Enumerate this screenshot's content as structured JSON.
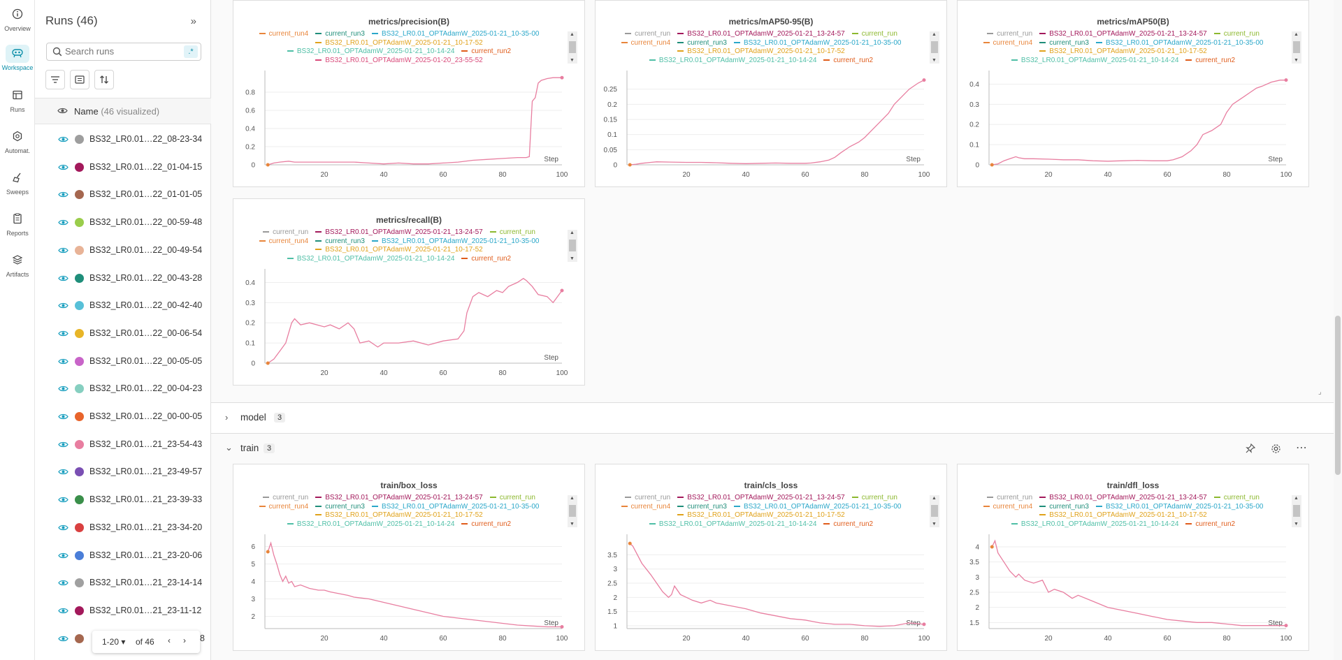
{
  "rail": {
    "items": [
      {
        "label": "Overview",
        "icon": "info-icon"
      },
      {
        "label": "Workspace",
        "icon": "workspace-icon"
      },
      {
        "label": "Runs",
        "icon": "table-icon"
      },
      {
        "label": "Automat.",
        "icon": "automation-icon"
      },
      {
        "label": "Sweeps",
        "icon": "broom-icon"
      },
      {
        "label": "Reports",
        "icon": "report-icon"
      },
      {
        "label": "Artifacts",
        "icon": "layers-icon"
      }
    ],
    "active": "Workspace",
    "accent": "#0b8ea8"
  },
  "runs_panel": {
    "title": "Runs (46)",
    "search_placeholder": "Search runs",
    "regex_label": ".*",
    "name_header": "Name",
    "name_header_note": "(46 visualized)",
    "runs": [
      {
        "name": "BS32_LR0.01…22_08-23-34",
        "color": "#9e9e9e"
      },
      {
        "name": "BS32_LR0.01…22_01-04-15",
        "color": "#a3195b"
      },
      {
        "name": "BS32_LR0.01…22_01-01-05",
        "color": "#a5674f"
      },
      {
        "name": "BS32_LR0.01…22_00-59-48",
        "color": "#9acd4b"
      },
      {
        "name": "BS32_LR0.01…22_00-49-54",
        "color": "#e8b397"
      },
      {
        "name": "BS32_LR0.01…22_00-43-28",
        "color": "#1f8e7a"
      },
      {
        "name": "BS32_LR0.01…22_00-42-40",
        "color": "#57c0d8"
      },
      {
        "name": "BS32_LR0.01…22_00-06-54",
        "color": "#e8b527"
      },
      {
        "name": "BS32_LR0.01…22_00-05-05",
        "color": "#c864c8"
      },
      {
        "name": "BS32_LR0.01…22_00-04-23",
        "color": "#86cfc0"
      },
      {
        "name": "BS32_LR0.01…22_00-00-05",
        "color": "#e8642b"
      },
      {
        "name": "BS32_LR0.01…21_23-54-43",
        "color": "#e87ea0"
      },
      {
        "name": "BS32_LR0.01…21_23-49-57",
        "color": "#7a4fb3"
      },
      {
        "name": "BS32_LR0.01…21_23-39-33",
        "color": "#3a8f4a"
      },
      {
        "name": "BS32_LR0.01…21_23-34-20",
        "color": "#d94040"
      },
      {
        "name": "BS32_LR0.01…21_23-20-06",
        "color": "#4a7ed8"
      },
      {
        "name": "BS32_LR0.01…21_23-14-14",
        "color": "#a0a0a0"
      },
      {
        "name": "BS32_LR0.01…21_23-11-12",
        "color": "#a3195b"
      },
      {
        "name": "8",
        "color": "#a5674f"
      }
    ],
    "pager": {
      "range": "1-20",
      "of": "of 46"
    }
  },
  "sections": {
    "model": {
      "name": "model",
      "count": "3"
    },
    "train": {
      "name": "train",
      "count": "3"
    }
  },
  "legend_names": {
    "current_run": "current_run",
    "lr_1324": "BS32_LR0.01_OPTAdamW_2025-01-21_13-24-57",
    "current_run4": "current_run4",
    "current_run3": "current_run3",
    "lr_1035": "BS32_LR0.01_OPTAdamW_2025-01-21_10-35-00",
    "lr_1017": "BS32_LR0.01_OPTAdamW_2025-01-21_10-17-52",
    "lr_1014": "BS32_LR0.01_OPTAdamW_2025-01-21_10-14-24",
    "current_run2": "current_run2",
    "lr_2355": "BS32_LR0.01_OPTAdamW_2025-01-20_23-55-52"
  },
  "legend_colors": {
    "current_run": "#999999",
    "lr_1324": "#a3195b",
    "current_run4": "#e8853b",
    "current_run3": "#1f8e7a",
    "lr_1035": "#2aa7c9",
    "lr_1017": "#e0a21b",
    "lr_1014": "#4fbfa6",
    "current_run2": "#e05c1b",
    "current_run_green": "#8cb82e",
    "lr_2355": "#d94a7a"
  },
  "chart_data": [
    {
      "type": "line",
      "title": "metrics/precision(B)",
      "xlabel": "Step",
      "xlim": [
        0,
        100
      ],
      "ylim": [
        0,
        1
      ],
      "xticks": [
        "20",
        "40",
        "60",
        "80",
        "100"
      ],
      "yticks": [
        "0",
        "0.2",
        "0.4",
        "0.6",
        "0.8"
      ],
      "series": [
        {
          "name": "BS32_LR0.01_OPTAdamW_2025-01-20_23-55-52",
          "color": "#e87ea0",
          "x": [
            1,
            2,
            3,
            5,
            8,
            10,
            15,
            20,
            25,
            30,
            35,
            40,
            45,
            50,
            55,
            60,
            65,
            70,
            75,
            80,
            85,
            88,
            89,
            90,
            91,
            92,
            93,
            95,
            97,
            100
          ],
          "y": [
            0.0,
            0.01,
            0.02,
            0.03,
            0.04,
            0.03,
            0.03,
            0.03,
            0.03,
            0.03,
            0.02,
            0.01,
            0.02,
            0.01,
            0.01,
            0.02,
            0.03,
            0.05,
            0.06,
            0.07,
            0.08,
            0.08,
            0.09,
            0.7,
            0.74,
            0.9,
            0.93,
            0.95,
            0.96,
            0.96
          ]
        }
      ]
    },
    {
      "type": "line",
      "title": "metrics/mAP50-95(B)",
      "xlabel": "Step",
      "xlim": [
        0,
        100
      ],
      "ylim": [
        0,
        0.3
      ],
      "xticks": [
        "20",
        "40",
        "60",
        "80",
        "100"
      ],
      "yticks": [
        "0",
        "0.05",
        "0.1",
        "0.15",
        "0.2",
        "0.25"
      ],
      "series": [
        {
          "name": "BS32_LR0.01_OPTAdamW_2025-01-20_23-55-52",
          "color": "#e87ea0",
          "x": [
            1,
            3,
            5,
            8,
            10,
            15,
            20,
            25,
            30,
            35,
            40,
            45,
            50,
            55,
            60,
            62,
            65,
            68,
            70,
            72,
            75,
            78,
            80,
            82,
            85,
            88,
            90,
            92,
            95,
            98,
            100
          ],
          "y": [
            0.0,
            0.002,
            0.005,
            0.008,
            0.01,
            0.009,
            0.008,
            0.008,
            0.007,
            0.005,
            0.004,
            0.005,
            0.006,
            0.005,
            0.005,
            0.006,
            0.01,
            0.016,
            0.025,
            0.04,
            0.06,
            0.075,
            0.09,
            0.11,
            0.14,
            0.17,
            0.2,
            0.22,
            0.25,
            0.27,
            0.28
          ]
        }
      ]
    },
    {
      "type": "line",
      "title": "metrics/mAP50(B)",
      "xlabel": "Step",
      "xlim": [
        0,
        100
      ],
      "ylim": [
        0,
        0.45
      ],
      "xticks": [
        "20",
        "40",
        "60",
        "80",
        "100"
      ],
      "yticks": [
        "0",
        "0.1",
        "0.2",
        "0.3",
        "0.4"
      ],
      "series": [
        {
          "name": "BS32_LR0.01_OPTAdamW_2025-01-20_23-55-52",
          "color": "#e87ea0",
          "x": [
            1,
            3,
            5,
            7,
            9,
            10,
            12,
            15,
            20,
            25,
            30,
            35,
            40,
            45,
            50,
            55,
            60,
            62,
            65,
            68,
            70,
            72,
            75,
            78,
            80,
            82,
            85,
            88,
            90,
            92,
            95,
            98,
            100
          ],
          "y": [
            0.0,
            0.005,
            0.02,
            0.03,
            0.04,
            0.035,
            0.03,
            0.03,
            0.028,
            0.025,
            0.025,
            0.02,
            0.018,
            0.02,
            0.022,
            0.02,
            0.02,
            0.025,
            0.04,
            0.07,
            0.1,
            0.15,
            0.17,
            0.2,
            0.26,
            0.3,
            0.33,
            0.36,
            0.38,
            0.39,
            0.41,
            0.42,
            0.42
          ]
        }
      ]
    },
    {
      "type": "line",
      "title": "metrics/recall(B)",
      "xlabel": "Step",
      "xlim": [
        0,
        100
      ],
      "ylim": [
        0,
        0.45
      ],
      "xticks": [
        "20",
        "40",
        "60",
        "80",
        "100"
      ],
      "yticks": [
        "0",
        "0.1",
        "0.2",
        "0.3",
        "0.4"
      ],
      "series": [
        {
          "name": "BS32_LR0.01_OPTAdamW_2025-01-20_23-55-52",
          "color": "#e87ea0",
          "x": [
            1,
            3,
            5,
            7,
            8,
            9,
            10,
            12,
            15,
            20,
            22,
            25,
            28,
            30,
            32,
            35,
            38,
            40,
            45,
            50,
            55,
            60,
            65,
            67,
            68,
            70,
            72,
            75,
            78,
            80,
            82,
            85,
            87,
            88,
            90,
            92,
            95,
            97,
            98,
            100
          ],
          "y": [
            0.0,
            0.02,
            0.06,
            0.1,
            0.15,
            0.2,
            0.22,
            0.19,
            0.2,
            0.18,
            0.19,
            0.17,
            0.2,
            0.17,
            0.1,
            0.11,
            0.08,
            0.1,
            0.1,
            0.11,
            0.09,
            0.11,
            0.12,
            0.16,
            0.25,
            0.33,
            0.35,
            0.33,
            0.36,
            0.35,
            0.38,
            0.4,
            0.42,
            0.41,
            0.38,
            0.34,
            0.33,
            0.3,
            0.32,
            0.36
          ]
        }
      ]
    },
    {
      "type": "line",
      "title": "train/box_loss",
      "xlabel": "Step",
      "xlim": [
        0,
        100
      ],
      "ylim": [
        1.3,
        6.5
      ],
      "xticks": [
        "20",
        "40",
        "60",
        "80",
        "100"
      ],
      "yticks": [
        "2",
        "3",
        "4",
        "5",
        "6"
      ],
      "series": [
        {
          "name": "BS32_LR0.01_OPTAdamW_2025-01-20_23-55-52",
          "color": "#e87ea0",
          "x": [
            1,
            2,
            3,
            4,
            5,
            6,
            7,
            8,
            9,
            10,
            12,
            15,
            18,
            20,
            22,
            25,
            28,
            30,
            35,
            40,
            45,
            50,
            55,
            60,
            65,
            70,
            75,
            80,
            85,
            90,
            95,
            100
          ],
          "y": [
            5.7,
            6.2,
            5.5,
            5.0,
            4.4,
            4.0,
            4.3,
            3.9,
            4.0,
            3.7,
            3.8,
            3.6,
            3.5,
            3.5,
            3.4,
            3.3,
            3.2,
            3.1,
            3.0,
            2.8,
            2.6,
            2.4,
            2.2,
            2.0,
            1.9,
            1.8,
            1.7,
            1.6,
            1.5,
            1.45,
            1.4,
            1.4
          ]
        }
      ]
    },
    {
      "type": "line",
      "title": "train/cls_loss",
      "xlabel": "Step",
      "xlim": [
        0,
        100
      ],
      "ylim": [
        0.9,
        4.1
      ],
      "xticks": [
        "20",
        "40",
        "60",
        "80",
        "100"
      ],
      "yticks": [
        "1",
        "1.5",
        "2",
        "2.5",
        "3",
        "3.5"
      ],
      "series": [
        {
          "name": "BS32_LR0.01_OPTAdamW_2025-01-20_23-55-52",
          "color": "#e87ea0",
          "x": [
            1,
            2,
            3,
            5,
            8,
            10,
            12,
            14,
            15,
            16,
            18,
            20,
            22,
            25,
            28,
            30,
            35,
            40,
            45,
            50,
            55,
            60,
            65,
            70,
            75,
            80,
            85,
            90,
            95,
            100
          ],
          "y": [
            3.9,
            3.8,
            3.6,
            3.2,
            2.8,
            2.5,
            2.2,
            2.0,
            2.1,
            2.4,
            2.1,
            2.0,
            1.9,
            1.8,
            1.9,
            1.8,
            1.7,
            1.6,
            1.45,
            1.35,
            1.25,
            1.2,
            1.1,
            1.05,
            1.05,
            1.0,
            0.98,
            1.0,
            1.1,
            1.05
          ]
        }
      ]
    },
    {
      "type": "line",
      "title": "train/dfl_loss",
      "xlabel": "Step",
      "xlim": [
        0,
        100
      ],
      "ylim": [
        1.3,
        4.3
      ],
      "xticks": [
        "20",
        "40",
        "60",
        "80",
        "100"
      ],
      "yticks": [
        "1.5",
        "2",
        "2.5",
        "3",
        "3.5",
        "4"
      ],
      "series": [
        {
          "name": "BS32_LR0.01_OPTAdamW_2025-01-20_23-55-52",
          "color": "#e87ea0",
          "x": [
            1,
            2,
            3,
            5,
            7,
            9,
            10,
            12,
            15,
            18,
            20,
            22,
            25,
            28,
            30,
            35,
            40,
            45,
            50,
            55,
            60,
            65,
            70,
            75,
            80,
            85,
            90,
            95,
            100
          ],
          "y": [
            4.0,
            4.2,
            3.8,
            3.5,
            3.2,
            3.0,
            3.1,
            2.9,
            2.8,
            2.9,
            2.5,
            2.6,
            2.5,
            2.3,
            2.4,
            2.2,
            2.0,
            1.9,
            1.8,
            1.7,
            1.6,
            1.55,
            1.5,
            1.5,
            1.45,
            1.4,
            1.4,
            1.4,
            1.4
          ]
        }
      ]
    }
  ],
  "legends": [
    [
      [
        "current_run4",
        "current_run4"
      ],
      [
        "current_run3",
        "current_run3"
      ],
      [
        "lr_1035",
        "lr_1035"
      ],
      "|",
      [
        "lr_1017",
        "lr_1017"
      ],
      "|",
      [
        "lr_1014",
        "lr_1014"
      ],
      [
        "current_run2",
        "current_run2"
      ],
      "|",
      [
        "lr_2355",
        "lr_2355"
      ]
    ],
    [
      [
        "current_run",
        "current_run"
      ],
      [
        "lr_1324",
        "lr_1324"
      ],
      [
        "current_run",
        "current_run_green"
      ],
      "|",
      [
        "current_run4",
        "current_run4"
      ],
      [
        "current_run3",
        "current_run3"
      ],
      [
        "lr_1035",
        "lr_1035"
      ],
      "|",
      [
        "lr_1017",
        "lr_1017"
      ],
      "|",
      [
        "lr_1014",
        "lr_1014"
      ],
      [
        "current_run2",
        "current_run2"
      ]
    ]
  ]
}
